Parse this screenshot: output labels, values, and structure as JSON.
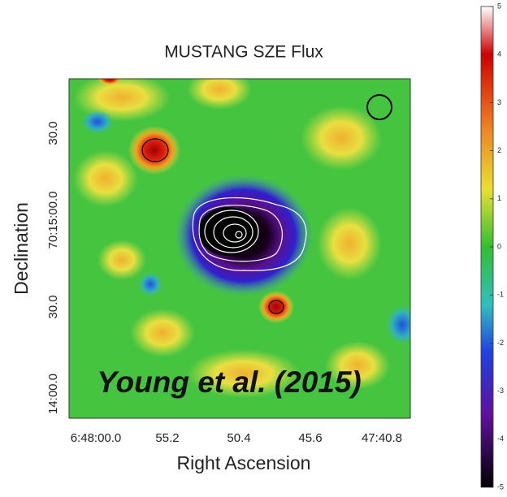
{
  "chart_data": {
    "type": "heatmap",
    "title": "MUSTANG SZE Flux",
    "x_label": "Right Ascension",
    "y_label": "Declination",
    "x_tick_labels": [
      "6:48:00.0",
      "55.2",
      "50.4",
      "45.6",
      "47:40.8"
    ],
    "y_tick_labels": [
      "14:00.0",
      "30.0",
      "70:15:00.0",
      "30.0"
    ],
    "annotation": "Young et al. (2015)",
    "colorbar": {
      "ylim": [
        -5,
        5
      ],
      "yticks": [
        -5,
        -4,
        -3,
        -2,
        -1,
        0,
        1,
        2,
        3,
        4,
        5
      ]
    }
  }
}
